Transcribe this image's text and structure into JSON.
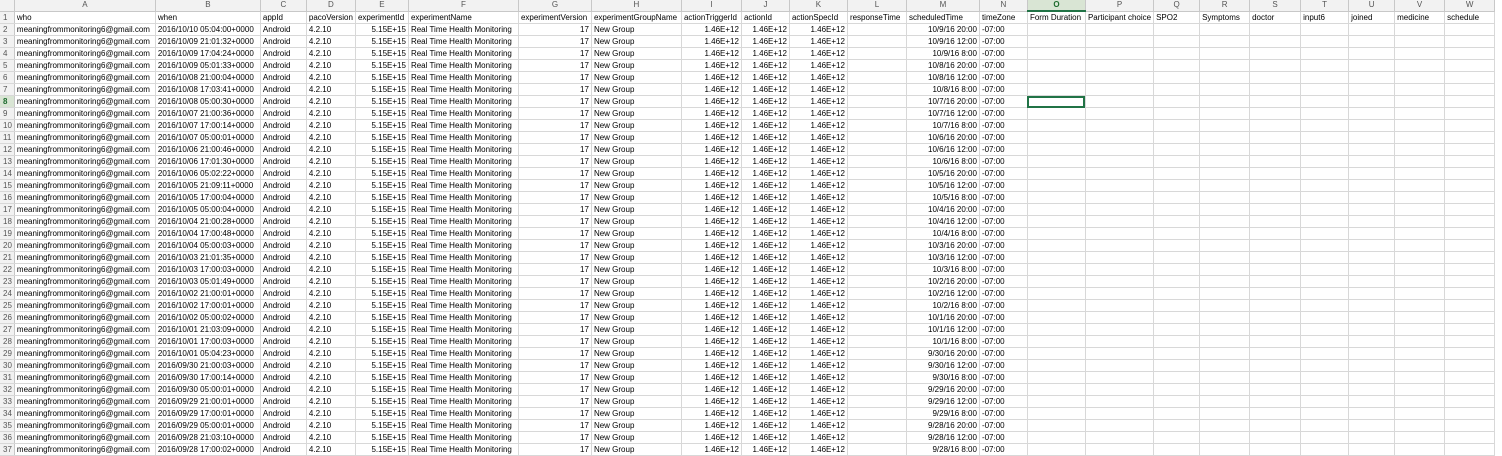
{
  "columns": [
    "A",
    "B",
    "C",
    "D",
    "E",
    "F",
    "G",
    "H",
    "I",
    "J",
    "K",
    "L",
    "M",
    "N",
    "O",
    "P",
    "Q",
    "R",
    "S",
    "T",
    "U",
    "V",
    "W"
  ],
  "selected_column": "O",
  "selected_row": 8,
  "header_row": [
    "who",
    "when",
    "appId",
    "pacoVersion",
    "experimentId",
    "experimentName",
    "experimentVersion",
    "experimentGroupName",
    "actionTriggerId",
    "actionId",
    "actionSpecId",
    "responseTime",
    "scheduledTime",
    "timeZone",
    "Form Duration",
    "Participant choice",
    "SPO2",
    "Symptoms",
    "doctor",
    "input6",
    "joined",
    "medicine",
    "schedule"
  ],
  "numeric_columns": [
    4,
    6,
    8,
    9,
    10,
    12
  ],
  "rows": [
    [
      "meaningfrommonitoring6@gmail.com",
      "2016/10/10 05:04:00+0000",
      "Android",
      "4.2.10",
      "5.15E+15",
      "Real Time Health Monitoring",
      "17",
      "New Group",
      "1.46E+12",
      "1.46E+12",
      "1.46E+12",
      "",
      "10/9/16 20:00",
      "-07:00"
    ],
    [
      "meaningfrommonitoring6@gmail.com",
      "2016/10/09 21:01:32+0000",
      "Android",
      "4.2.10",
      "5.15E+15",
      "Real Time Health Monitoring",
      "17",
      "New Group",
      "1.46E+12",
      "1.46E+12",
      "1.46E+12",
      "",
      "10/9/16 12:00",
      "-07:00"
    ],
    [
      "meaningfrommonitoring6@gmail.com",
      "2016/10/09 17:04:24+0000",
      "Android",
      "4.2.10",
      "5.15E+15",
      "Real Time Health Monitoring",
      "17",
      "New Group",
      "1.46E+12",
      "1.46E+12",
      "1.46E+12",
      "",
      "10/9/16 8:00",
      "-07:00"
    ],
    [
      "meaningfrommonitoring6@gmail.com",
      "2016/10/09 05:01:33+0000",
      "Android",
      "4.2.10",
      "5.15E+15",
      "Real Time Health Monitoring",
      "17",
      "New Group",
      "1.46E+12",
      "1.46E+12",
      "1.46E+12",
      "",
      "10/8/16 20:00",
      "-07:00"
    ],
    [
      "meaningfrommonitoring6@gmail.com",
      "2016/10/08 21:00:04+0000",
      "Android",
      "4.2.10",
      "5.15E+15",
      "Real Time Health Monitoring",
      "17",
      "New Group",
      "1.46E+12",
      "1.46E+12",
      "1.46E+12",
      "",
      "10/8/16 12:00",
      "-07:00"
    ],
    [
      "meaningfrommonitoring6@gmail.com",
      "2016/10/08 17:03:41+0000",
      "Android",
      "4.2.10",
      "5.15E+15",
      "Real Time Health Monitoring",
      "17",
      "New Group",
      "1.46E+12",
      "1.46E+12",
      "1.46E+12",
      "",
      "10/8/16 8:00",
      "-07:00"
    ],
    [
      "meaningfrommonitoring6@gmail.com",
      "2016/10/08 05:00:30+0000",
      "Android",
      "4.2.10",
      "5.15E+15",
      "Real Time Health Monitoring",
      "17",
      "New Group",
      "1.46E+12",
      "1.46E+12",
      "1.46E+12",
      "",
      "10/7/16 20:00",
      "-07:00"
    ],
    [
      "meaningfrommonitoring6@gmail.com",
      "2016/10/07 21:00:36+0000",
      "Android",
      "4.2.10",
      "5.15E+15",
      "Real Time Health Monitoring",
      "17",
      "New Group",
      "1.46E+12",
      "1.46E+12",
      "1.46E+12",
      "",
      "10/7/16 12:00",
      "-07:00"
    ],
    [
      "meaningfrommonitoring6@gmail.com",
      "2016/10/07 17:00:14+0000",
      "Android",
      "4.2.10",
      "5.15E+15",
      "Real Time Health Monitoring",
      "17",
      "New Group",
      "1.46E+12",
      "1.46E+12",
      "1.46E+12",
      "",
      "10/7/16 8:00",
      "-07:00"
    ],
    [
      "meaningfrommonitoring6@gmail.com",
      "2016/10/07 05:00:01+0000",
      "Android",
      "4.2.10",
      "5.15E+15",
      "Real Time Health Monitoring",
      "17",
      "New Group",
      "1.46E+12",
      "1.46E+12",
      "1.46E+12",
      "",
      "10/6/16 20:00",
      "-07:00"
    ],
    [
      "meaningfrommonitoring6@gmail.com",
      "2016/10/06 21:00:46+0000",
      "Android",
      "4.2.10",
      "5.15E+15",
      "Real Time Health Monitoring",
      "17",
      "New Group",
      "1.46E+12",
      "1.46E+12",
      "1.46E+12",
      "",
      "10/6/16 12:00",
      "-07:00"
    ],
    [
      "meaningfrommonitoring6@gmail.com",
      "2016/10/06 17:01:30+0000",
      "Android",
      "4.2.10",
      "5.15E+15",
      "Real Time Health Monitoring",
      "17",
      "New Group",
      "1.46E+12",
      "1.46E+12",
      "1.46E+12",
      "",
      "10/6/16 8:00",
      "-07:00"
    ],
    [
      "meaningfrommonitoring6@gmail.com",
      "2016/10/06 05:02:22+0000",
      "Android",
      "4.2.10",
      "5.15E+15",
      "Real Time Health Monitoring",
      "17",
      "New Group",
      "1.46E+12",
      "1.46E+12",
      "1.46E+12",
      "",
      "10/5/16 20:00",
      "-07:00"
    ],
    [
      "meaningfrommonitoring6@gmail.com",
      "2016/10/05 21:09:11+0000",
      "Android",
      "4.2.10",
      "5.15E+15",
      "Real Time Health Monitoring",
      "17",
      "New Group",
      "1.46E+12",
      "1.46E+12",
      "1.46E+12",
      "",
      "10/5/16 12:00",
      "-07:00"
    ],
    [
      "meaningfrommonitoring6@gmail.com",
      "2016/10/05 17:00:04+0000",
      "Android",
      "4.2.10",
      "5.15E+15",
      "Real Time Health Monitoring",
      "17",
      "New Group",
      "1.46E+12",
      "1.46E+12",
      "1.46E+12",
      "",
      "10/5/16 8:00",
      "-07:00"
    ],
    [
      "meaningfrommonitoring6@gmail.com",
      "2016/10/05 05:00:04+0000",
      "Android",
      "4.2.10",
      "5.15E+15",
      "Real Time Health Monitoring",
      "17",
      "New Group",
      "1.46E+12",
      "1.46E+12",
      "1.46E+12",
      "",
      "10/4/16 20:00",
      "-07:00"
    ],
    [
      "meaningfrommonitoring6@gmail.com",
      "2016/10/04 21:00:28+0000",
      "Android",
      "4.2.10",
      "5.15E+15",
      "Real Time Health Monitoring",
      "17",
      "New Group",
      "1.46E+12",
      "1.46E+12",
      "1.46E+12",
      "",
      "10/4/16 12:00",
      "-07:00"
    ],
    [
      "meaningfrommonitoring6@gmail.com",
      "2016/10/04 17:00:48+0000",
      "Android",
      "4.2.10",
      "5.15E+15",
      "Real Time Health Monitoring",
      "17",
      "New Group",
      "1.46E+12",
      "1.46E+12",
      "1.46E+12",
      "",
      "10/4/16 8:00",
      "-07:00"
    ],
    [
      "meaningfrommonitoring6@gmail.com",
      "2016/10/04 05:00:03+0000",
      "Android",
      "4.2.10",
      "5.15E+15",
      "Real Time Health Monitoring",
      "17",
      "New Group",
      "1.46E+12",
      "1.46E+12",
      "1.46E+12",
      "",
      "10/3/16 20:00",
      "-07:00"
    ],
    [
      "meaningfrommonitoring6@gmail.com",
      "2016/10/03 21:01:35+0000",
      "Android",
      "4.2.10",
      "5.15E+15",
      "Real Time Health Monitoring",
      "17",
      "New Group",
      "1.46E+12",
      "1.46E+12",
      "1.46E+12",
      "",
      "10/3/16 12:00",
      "-07:00"
    ],
    [
      "meaningfrommonitoring6@gmail.com",
      "2016/10/03 17:00:03+0000",
      "Android",
      "4.2.10",
      "5.15E+15",
      "Real Time Health Monitoring",
      "17",
      "New Group",
      "1.46E+12",
      "1.46E+12",
      "1.46E+12",
      "",
      "10/3/16 8:00",
      "-07:00"
    ],
    [
      "meaningfrommonitoring6@gmail.com",
      "2016/10/03 05:01:49+0000",
      "Android",
      "4.2.10",
      "5.15E+15",
      "Real Time Health Monitoring",
      "17",
      "New Group",
      "1.46E+12",
      "1.46E+12",
      "1.46E+12",
      "",
      "10/2/16 20:00",
      "-07:00"
    ],
    [
      "meaningfrommonitoring6@gmail.com",
      "2016/10/02 21:00:01+0000",
      "Android",
      "4.2.10",
      "5.15E+15",
      "Real Time Health Monitoring",
      "17",
      "New Group",
      "1.46E+12",
      "1.46E+12",
      "1.46E+12",
      "",
      "10/2/16 12:00",
      "-07:00"
    ],
    [
      "meaningfrommonitoring6@gmail.com",
      "2016/10/02 17:00:01+0000",
      "Android",
      "4.2.10",
      "5.15E+15",
      "Real Time Health Monitoring",
      "17",
      "New Group",
      "1.46E+12",
      "1.46E+12",
      "1.46E+12",
      "",
      "10/2/16 8:00",
      "-07:00"
    ],
    [
      "meaningfrommonitoring6@gmail.com",
      "2016/10/02 05:00:02+0000",
      "Android",
      "4.2.10",
      "5.15E+15",
      "Real Time Health Monitoring",
      "17",
      "New Group",
      "1.46E+12",
      "1.46E+12",
      "1.46E+12",
      "",
      "10/1/16 20:00",
      "-07:00"
    ],
    [
      "meaningfrommonitoring6@gmail.com",
      "2016/10/01 21:03:09+0000",
      "Android",
      "4.2.10",
      "5.15E+15",
      "Real Time Health Monitoring",
      "17",
      "New Group",
      "1.46E+12",
      "1.46E+12",
      "1.46E+12",
      "",
      "10/1/16 12:00",
      "-07:00"
    ],
    [
      "meaningfrommonitoring6@gmail.com",
      "2016/10/01 17:00:03+0000",
      "Android",
      "4.2.10",
      "5.15E+15",
      "Real Time Health Monitoring",
      "17",
      "New Group",
      "1.46E+12",
      "1.46E+12",
      "1.46E+12",
      "",
      "10/1/16 8:00",
      "-07:00"
    ],
    [
      "meaningfrommonitoring6@gmail.com",
      "2016/10/01 05:04:23+0000",
      "Android",
      "4.2.10",
      "5.15E+15",
      "Real Time Health Monitoring",
      "17",
      "New Group",
      "1.46E+12",
      "1.46E+12",
      "1.46E+12",
      "",
      "9/30/16 20:00",
      "-07:00"
    ],
    [
      "meaningfrommonitoring6@gmail.com",
      "2016/09/30 21:00:03+0000",
      "Android",
      "4.2.10",
      "5.15E+15",
      "Real Time Health Monitoring",
      "17",
      "New Group",
      "1.46E+12",
      "1.46E+12",
      "1.46E+12",
      "",
      "9/30/16 12:00",
      "-07:00"
    ],
    [
      "meaningfrommonitoring6@gmail.com",
      "2016/09/30 17:00:14+0000",
      "Android",
      "4.2.10",
      "5.15E+15",
      "Real Time Health Monitoring",
      "17",
      "New Group",
      "1.46E+12",
      "1.46E+12",
      "1.46E+12",
      "",
      "9/30/16 8:00",
      "-07:00"
    ],
    [
      "meaningfrommonitoring6@gmail.com",
      "2016/09/30 05:00:01+0000",
      "Android",
      "4.2.10",
      "5.15E+15",
      "Real Time Health Monitoring",
      "17",
      "New Group",
      "1.46E+12",
      "1.46E+12",
      "1.46E+12",
      "",
      "9/29/16 20:00",
      "-07:00"
    ],
    [
      "meaningfrommonitoring6@gmail.com",
      "2016/09/29 21:00:01+0000",
      "Android",
      "4.2.10",
      "5.15E+15",
      "Real Time Health Monitoring",
      "17",
      "New Group",
      "1.46E+12",
      "1.46E+12",
      "1.46E+12",
      "",
      "9/29/16 12:00",
      "-07:00"
    ],
    [
      "meaningfrommonitoring6@gmail.com",
      "2016/09/29 17:00:01+0000",
      "Android",
      "4.2.10",
      "5.15E+15",
      "Real Time Health Monitoring",
      "17",
      "New Group",
      "1.46E+12",
      "1.46E+12",
      "1.46E+12",
      "",
      "9/29/16 8:00",
      "-07:00"
    ],
    [
      "meaningfrommonitoring6@gmail.com",
      "2016/09/29 05:00:01+0000",
      "Android",
      "4.2.10",
      "5.15E+15",
      "Real Time Health Monitoring",
      "17",
      "New Group",
      "1.46E+12",
      "1.46E+12",
      "1.46E+12",
      "",
      "9/28/16 20:00",
      "-07:00"
    ],
    [
      "meaningfrommonitoring6@gmail.com",
      "2016/09/28 21:03:10+0000",
      "Android",
      "4.2.10",
      "5.15E+15",
      "Real Time Health Monitoring",
      "17",
      "New Group",
      "1.46E+12",
      "1.46E+12",
      "1.46E+12",
      "",
      "9/28/16 12:00",
      "-07:00"
    ],
    [
      "meaningfrommonitoring6@gmail.com",
      "2016/09/28 17:00:02+0000",
      "Android",
      "4.2.10",
      "5.15E+15",
      "Real Time Health Monitoring",
      "17",
      "New Group",
      "1.46E+12",
      "1.46E+12",
      "1.46E+12",
      "",
      "9/28/16 8:00",
      "-07:00"
    ]
  ]
}
